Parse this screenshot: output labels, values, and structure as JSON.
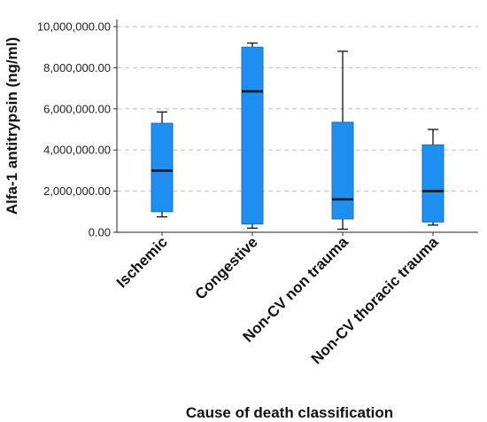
{
  "chart_data": {
    "type": "box",
    "xlabel": "Cause of death classification",
    "ylabel": "Alfa-1 antitrypsin  (ng/ml)",
    "ylim": [
      0,
      10000000
    ],
    "yticks": [
      0,
      2000000,
      4000000,
      6000000,
      8000000,
      10000000
    ],
    "ytick_labels": [
      "0.00",
      "2,000,000.00",
      "4,000,000.00",
      "6,000,000.00",
      "8,000,000.00",
      "10,000,000.00"
    ],
    "grid": "horizontal dashed",
    "box_color": "#1e8ff0",
    "categories": [
      "Ischemic",
      "Congestive",
      "Non-CV non trauma",
      "Non-CV thoracic trauma"
    ],
    "boxes": [
      {
        "min": 750000,
        "q1": 1000000,
        "median": 3000000,
        "q3": 5300000,
        "max": 5850000
      },
      {
        "min": 200000,
        "q1": 400000,
        "median": 6850000,
        "q3": 9000000,
        "max": 9200000
      },
      {
        "min": 150000,
        "q1": 650000,
        "median": 1600000,
        "q3": 5350000,
        "max": 8800000
      },
      {
        "min": 350000,
        "q1": 500000,
        "median": 2000000,
        "q3": 4250000,
        "max": 5000000
      }
    ]
  }
}
